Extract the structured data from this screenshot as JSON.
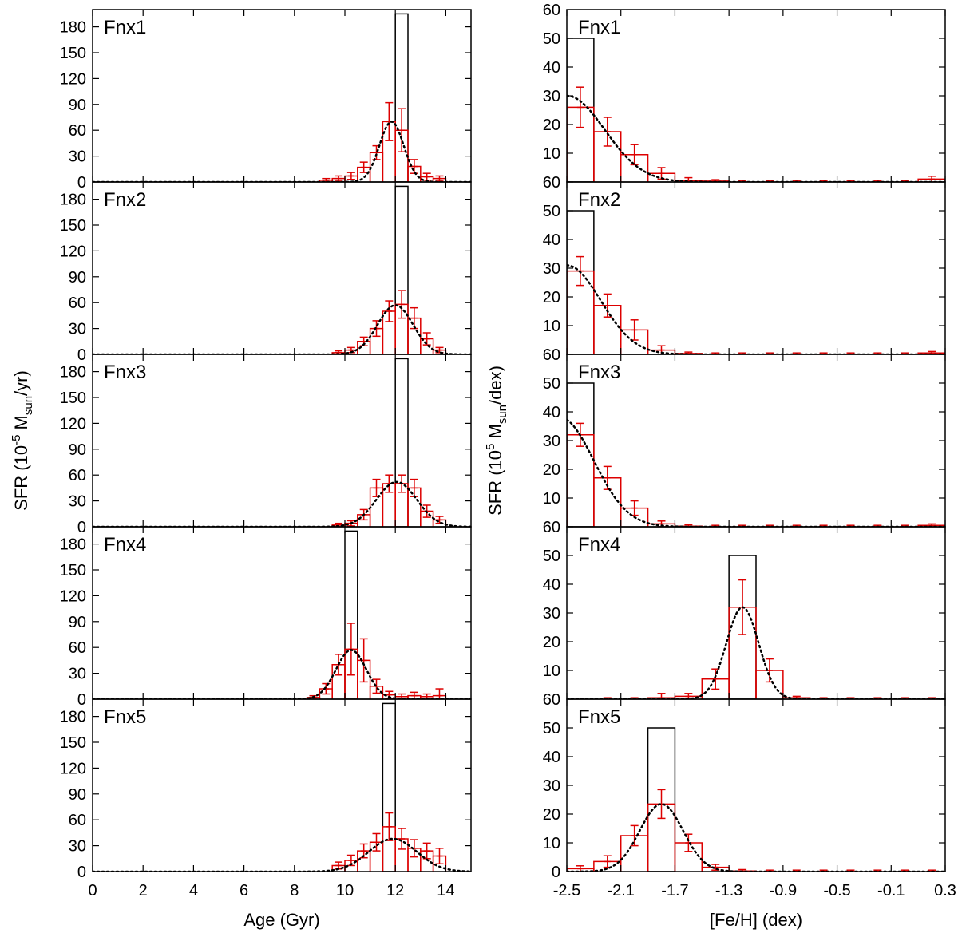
{
  "chart_data": {
    "type": "bar",
    "description_panels": "left column: SFR vs Age; right column: SFR vs [Fe/H]",
    "left": {
      "xlabel": "Age (Gyr)",
      "ylabel_main": "SFR (10",
      "ylabel_sup": "-5",
      "ylabel_mid": " M",
      "ylabel_sub": "sun",
      "ylabel_end": "/yr)",
      "xlim": [
        0,
        15
      ],
      "ylim": [
        0,
        200
      ],
      "xticks": [
        0,
        2,
        4,
        6,
        8,
        10,
        12,
        14
      ],
      "xtick_labels": [
        "0",
        "2",
        "4",
        "6",
        "8",
        "10",
        "12",
        "14"
      ],
      "yticks": [
        0,
        30,
        60,
        90,
        120,
        150,
        180
      ],
      "ytick_labels": [
        "0",
        "30",
        "60",
        "90",
        "120",
        "150",
        "180"
      ],
      "panels": [
        {
          "label": "Fnx1",
          "input_bar": {
            "x0": 12.0,
            "x1": 12.5,
            "height": 195
          },
          "bins": [
            {
              "x0": 9.0,
              "x1": 9.5,
              "y": 2,
              "err": 2
            },
            {
              "x0": 9.5,
              "x1": 10.0,
              "y": 4,
              "err": 3
            },
            {
              "x0": 10.0,
              "x1": 10.5,
              "y": 7,
              "err": 4
            },
            {
              "x0": 10.5,
              "x1": 11.0,
              "y": 17,
              "err": 6
            },
            {
              "x0": 11.0,
              "x1": 11.5,
              "y": 34,
              "err": 8
            },
            {
              "x0": 11.5,
              "x1": 12.0,
              "y": 70,
              "err": 22
            },
            {
              "x0": 12.0,
              "x1": 12.5,
              "y": 60,
              "err": 25
            },
            {
              "x0": 12.5,
              "x1": 13.0,
              "y": 18,
              "err": 8
            },
            {
              "x0": 13.0,
              "x1": 13.5,
              "y": 6,
              "err": 4
            },
            {
              "x0": 13.5,
              "x1": 14.0,
              "y": 4,
              "err": 3
            }
          ],
          "fit": {
            "mu": 11.85,
            "sigma": 0.48,
            "amp": 70
          }
        },
        {
          "label": "Fnx2",
          "input_bar": {
            "x0": 12.0,
            "x1": 12.5,
            "height": 195
          },
          "bins": [
            {
              "x0": 9.5,
              "x1": 10.0,
              "y": 2,
              "err": 2
            },
            {
              "x0": 10.0,
              "x1": 10.5,
              "y": 5,
              "err": 3
            },
            {
              "x0": 10.5,
              "x1": 11.0,
              "y": 15,
              "err": 5
            },
            {
              "x0": 11.0,
              "x1": 11.5,
              "y": 30,
              "err": 9
            },
            {
              "x0": 11.5,
              "x1": 12.0,
              "y": 50,
              "err": 12
            },
            {
              "x0": 12.0,
              "x1": 12.5,
              "y": 58,
              "err": 16
            },
            {
              "x0": 12.5,
              "x1": 13.0,
              "y": 42,
              "err": 12
            },
            {
              "x0": 13.0,
              "x1": 13.5,
              "y": 18,
              "err": 7
            },
            {
              "x0": 13.5,
              "x1": 14.0,
              "y": 5,
              "err": 3
            }
          ],
          "fit": {
            "mu": 12.0,
            "sigma": 0.7,
            "amp": 57
          }
        },
        {
          "label": "Fnx3",
          "input_bar": {
            "x0": 12.0,
            "x1": 12.5,
            "height": 195
          },
          "bins": [
            {
              "x0": 9.5,
              "x1": 10.0,
              "y": 2,
              "err": 2
            },
            {
              "x0": 10.0,
              "x1": 10.5,
              "y": 4,
              "err": 3
            },
            {
              "x0": 10.5,
              "x1": 11.0,
              "y": 14,
              "err": 6
            },
            {
              "x0": 11.0,
              "x1": 11.5,
              "y": 45,
              "err": 10
            },
            {
              "x0": 11.5,
              "x1": 12.0,
              "y": 50,
              "err": 10
            },
            {
              "x0": 12.0,
              "x1": 12.5,
              "y": 50,
              "err": 10
            },
            {
              "x0": 12.5,
              "x1": 13.0,
              "y": 45,
              "err": 10
            },
            {
              "x0": 13.0,
              "x1": 13.5,
              "y": 18,
              "err": 7
            },
            {
              "x0": 13.5,
              "x1": 14.0,
              "y": 8,
              "err": 4
            }
          ],
          "fit": {
            "mu": 12.05,
            "sigma": 0.8,
            "amp": 52
          }
        },
        {
          "label": "Fnx4",
          "input_bar": {
            "x0": 10.0,
            "x1": 10.5,
            "height": 195
          },
          "bins": [
            {
              "x0": 8.5,
              "x1": 9.0,
              "y": 2,
              "err": 2
            },
            {
              "x0": 9.0,
              "x1": 9.5,
              "y": 12,
              "err": 6
            },
            {
              "x0": 9.5,
              "x1": 10.0,
              "y": 40,
              "err": 12
            },
            {
              "x0": 10.0,
              "x1": 10.5,
              "y": 58,
              "err": 30
            },
            {
              "x0": 10.5,
              "x1": 11.0,
              "y": 45,
              "err": 25
            },
            {
              "x0": 11.0,
              "x1": 11.5,
              "y": 15,
              "err": 8
            },
            {
              "x0": 11.5,
              "x1": 12.0,
              "y": 5,
              "err": 4
            },
            {
              "x0": 12.0,
              "x1": 12.5,
              "y": 3,
              "err": 3
            },
            {
              "x0": 12.5,
              "x1": 13.0,
              "y": 4,
              "err": 4
            },
            {
              "x0": 13.0,
              "x1": 13.5,
              "y": 3,
              "err": 3
            },
            {
              "x0": 13.5,
              "x1": 14.0,
              "y": 4,
              "err": 8
            }
          ],
          "fit": {
            "mu": 10.25,
            "sigma": 0.6,
            "amp": 57
          }
        },
        {
          "label": "Fnx5",
          "input_bar": {
            "x0": 11.5,
            "x1": 12.0,
            "height": 195
          },
          "bins": [
            {
              "x0": 9.5,
              "x1": 10.0,
              "y": 7,
              "err": 4
            },
            {
              "x0": 10.0,
              "x1": 10.5,
              "y": 13,
              "err": 6
            },
            {
              "x0": 10.5,
              "x1": 11.0,
              "y": 24,
              "err": 8
            },
            {
              "x0": 11.0,
              "x1": 11.5,
              "y": 34,
              "err": 10
            },
            {
              "x0": 11.5,
              "x1": 12.0,
              "y": 52,
              "err": 16
            },
            {
              "x0": 12.0,
              "x1": 12.5,
              "y": 38,
              "err": 12
            },
            {
              "x0": 12.5,
              "x1": 13.0,
              "y": 27,
              "err": 10
            },
            {
              "x0": 13.0,
              "x1": 13.5,
              "y": 24,
              "err": 9
            },
            {
              "x0": 13.5,
              "x1": 14.0,
              "y": 18,
              "err": 9
            }
          ],
          "fit": {
            "mu": 11.9,
            "sigma": 0.95,
            "amp": 38
          }
        }
      ]
    },
    "right": {
      "xlabel": "[Fe/H] (dex)",
      "ylabel_main": "SFR (10",
      "ylabel_sup": "5",
      "ylabel_mid": " M",
      "ylabel_sub": "sun",
      "ylabel_end": "/dex)",
      "xlim": [
        -2.5,
        0.3
      ],
      "ylim": [
        0,
        60
      ],
      "xticks": [
        -2.5,
        -2.1,
        -1.7,
        -1.3,
        -0.9,
        -0.5,
        -0.1,
        0.3
      ],
      "xtick_labels": [
        "-2.5",
        "-2.1",
        "-1.7",
        "-1.3",
        "-0.9",
        "-0.5",
        "-0.1",
        "0.3"
      ],
      "yticks": [
        0,
        10,
        20,
        30,
        40,
        50
      ],
      "ytick_labels_panel": [
        "60",
        "10",
        "20",
        "30",
        "40",
        "50"
      ],
      "ytick_labels_bottom": [
        "0",
        "10",
        "20",
        "30",
        "40",
        "50"
      ],
      "top_panel_extra_tick": {
        "value": 60,
        "label": "60"
      },
      "panels": [
        {
          "label": "Fnx1",
          "input_bar": {
            "x0": -2.5,
            "x1": -2.3,
            "height": 50
          },
          "bins": [
            {
              "x0": -2.5,
              "x1": -2.3,
              "y": 26,
              "err": 7
            },
            {
              "x0": -2.3,
              "x1": -2.1,
              "y": 17.5,
              "err": 5
            },
            {
              "x0": -2.1,
              "x1": -1.9,
              "y": 9.5,
              "err": 3.5
            },
            {
              "x0": -1.9,
              "x1": -1.7,
              "y": 3,
              "err": 2
            },
            {
              "x0": -1.7,
              "x1": -1.5,
              "y": 0.5,
              "err": 1
            },
            {
              "x0": -1.5,
              "x1": -1.3,
              "y": 0.3,
              "err": 0.5
            },
            {
              "x0": -1.3,
              "x1": -1.1,
              "y": 0,
              "err": 0.5
            },
            {
              "x0": -1.1,
              "x1": -0.9,
              "y": 0,
              "err": 0.5
            },
            {
              "x0": -0.9,
              "x1": -0.7,
              "y": 0,
              "err": 0.5
            },
            {
              "x0": -0.7,
              "x1": -0.5,
              "y": 0,
              "err": 0.5
            },
            {
              "x0": -0.5,
              "x1": -0.3,
              "y": 0,
              "err": 0.5
            },
            {
              "x0": -0.3,
              "x1": -0.1,
              "y": 0,
              "err": 0.5
            },
            {
              "x0": -0.1,
              "x1": 0.1,
              "y": 0,
              "err": 0.5
            },
            {
              "x0": 0.1,
              "x1": 0.3,
              "y": 1,
              "err": 1
            }
          ],
          "fit": {
            "mu": -2.5,
            "sigma": 0.28,
            "amp": 30
          }
        },
        {
          "label": "Fnx2",
          "input_bar": {
            "x0": -2.5,
            "x1": -2.3,
            "height": 50
          },
          "bins": [
            {
              "x0": -2.5,
              "x1": -2.3,
              "y": 29,
              "err": 5
            },
            {
              "x0": -2.3,
              "x1": -2.1,
              "y": 17,
              "err": 4
            },
            {
              "x0": -2.1,
              "x1": -1.9,
              "y": 8.5,
              "err": 3.5
            },
            {
              "x0": -1.9,
              "x1": -1.7,
              "y": 1.5,
              "err": 1.5
            },
            {
              "x0": -1.7,
              "x1": -1.5,
              "y": 0.3,
              "err": 0.5
            },
            {
              "x0": -1.5,
              "x1": -1.3,
              "y": 0,
              "err": 0.5
            },
            {
              "x0": -1.3,
              "x1": -1.1,
              "y": 0,
              "err": 0.5
            },
            {
              "x0": -1.1,
              "x1": -0.9,
              "y": 0,
              "err": 0.5
            },
            {
              "x0": -0.9,
              "x1": -0.7,
              "y": 0,
              "err": 0.5
            },
            {
              "x0": -0.7,
              "x1": -0.5,
              "y": 0,
              "err": 0.5
            },
            {
              "x0": -0.5,
              "x1": -0.3,
              "y": 0,
              "err": 0.5
            },
            {
              "x0": -0.3,
              "x1": -0.1,
              "y": 0,
              "err": 0.5
            },
            {
              "x0": -0.1,
              "x1": 0.1,
              "y": 0,
              "err": 0.5
            },
            {
              "x0": 0.1,
              "x1": 0.3,
              "y": 0.5,
              "err": 0.5
            }
          ],
          "fit": {
            "mu": -2.5,
            "sigma": 0.25,
            "amp": 31
          }
        },
        {
          "label": "Fnx3",
          "input_bar": {
            "x0": -2.5,
            "x1": -2.3,
            "height": 50
          },
          "bins": [
            {
              "x0": -2.5,
              "x1": -2.3,
              "y": 32,
              "err": 4
            },
            {
              "x0": -2.3,
              "x1": -2.1,
              "y": 17,
              "err": 4
            },
            {
              "x0": -2.1,
              "x1": -1.9,
              "y": 6.5,
              "err": 2.5
            },
            {
              "x0": -1.9,
              "x1": -1.7,
              "y": 1,
              "err": 1
            },
            {
              "x0": -1.7,
              "x1": -1.5,
              "y": 0.2,
              "err": 0.5
            },
            {
              "x0": -1.5,
              "x1": -1.3,
              "y": 0,
              "err": 0.5
            },
            {
              "x0": -1.3,
              "x1": -1.1,
              "y": 0,
              "err": 0.5
            },
            {
              "x0": -1.1,
              "x1": -0.9,
              "y": 0,
              "err": 0.5
            },
            {
              "x0": -0.9,
              "x1": -0.7,
              "y": 0,
              "err": 0.5
            },
            {
              "x0": -0.7,
              "x1": -0.5,
              "y": 0,
              "err": 0.5
            },
            {
              "x0": -0.5,
              "x1": -0.3,
              "y": 0,
              "err": 0.5
            },
            {
              "x0": -0.3,
              "x1": -0.1,
              "y": 0,
              "err": 0.5
            },
            {
              "x0": -0.1,
              "x1": 0.1,
              "y": 0,
              "err": 0.5
            },
            {
              "x0": 0.1,
              "x1": 0.3,
              "y": 0.5,
              "err": 0.5
            }
          ],
          "fit": {
            "mu": -2.55,
            "sigma": 0.25,
            "amp": 38
          }
        },
        {
          "label": "Fnx4",
          "input_bar": {
            "x0": -1.3,
            "x1": -1.1,
            "height": 50
          },
          "bins": [
            {
              "x0": -2.3,
              "x1": -2.1,
              "y": 0,
              "err": 0.5
            },
            {
              "x0": -2.1,
              "x1": -1.9,
              "y": 0,
              "err": 0.5
            },
            {
              "x0": -1.9,
              "x1": -1.7,
              "y": 0.5,
              "err": 1.5
            },
            {
              "x0": -1.7,
              "x1": -1.5,
              "y": 1,
              "err": 1
            },
            {
              "x0": -1.5,
              "x1": -1.3,
              "y": 7,
              "err": 3.5
            },
            {
              "x0": -1.3,
              "x1": -1.1,
              "y": 32,
              "err": 9.5
            },
            {
              "x0": -1.1,
              "x1": -0.9,
              "y": 10,
              "err": 4
            },
            {
              "x0": -0.9,
              "x1": -0.7,
              "y": 0.5,
              "err": 0.5
            },
            {
              "x0": -0.7,
              "x1": -0.5,
              "y": 0,
              "err": 0.5
            },
            {
              "x0": -0.5,
              "x1": -0.3,
              "y": 0,
              "err": 0.5
            },
            {
              "x0": -0.3,
              "x1": -0.1,
              "y": 0,
              "err": 0.5
            },
            {
              "x0": -0.1,
              "x1": 0.1,
              "y": 0,
              "err": 0.5
            },
            {
              "x0": 0.1,
              "x1": 0.3,
              "y": 0,
              "err": 0.5
            }
          ],
          "fit": {
            "mu": -1.2,
            "sigma": 0.12,
            "amp": 32
          }
        },
        {
          "label": "Fnx5",
          "input_bar": {
            "x0": -1.9,
            "x1": -1.7,
            "height": 50
          },
          "bins": [
            {
              "x0": -2.5,
              "x1": -2.3,
              "y": 1,
              "err": 1
            },
            {
              "x0": -2.3,
              "x1": -2.1,
              "y": 3.5,
              "err": 2
            },
            {
              "x0": -2.1,
              "x1": -1.9,
              "y": 12.5,
              "err": 3.5
            },
            {
              "x0": -1.9,
              "x1": -1.7,
              "y": 23.5,
              "err": 5
            },
            {
              "x0": -1.7,
              "x1": -1.5,
              "y": 10,
              "err": 3
            },
            {
              "x0": -1.5,
              "x1": -1.3,
              "y": 1.5,
              "err": 1
            },
            {
              "x0": -1.3,
              "x1": -1.1,
              "y": 0.2,
              "err": 0.5
            },
            {
              "x0": -1.1,
              "x1": -0.9,
              "y": 0,
              "err": 0.5
            },
            {
              "x0": -0.9,
              "x1": -0.7,
              "y": 0,
              "err": 0.5
            },
            {
              "x0": -0.7,
              "x1": -0.5,
              "y": 0,
              "err": 0.5
            },
            {
              "x0": -0.5,
              "x1": -0.3,
              "y": 0,
              "err": 0.5
            },
            {
              "x0": -0.3,
              "x1": -0.1,
              "y": 0,
              "err": 0.5
            },
            {
              "x0": -0.1,
              "x1": 0.1,
              "y": 0,
              "err": 0.5
            },
            {
              "x0": 0.1,
              "x1": 0.3,
              "y": 0,
              "err": 0.5
            }
          ],
          "fit": {
            "mu": -1.8,
            "sigma": 0.16,
            "amp": 23.5
          }
        }
      ]
    },
    "colors": {
      "input_bar": "#000000",
      "recovered": "#dd0000",
      "fit": "#000000",
      "axes": "#000000"
    }
  }
}
